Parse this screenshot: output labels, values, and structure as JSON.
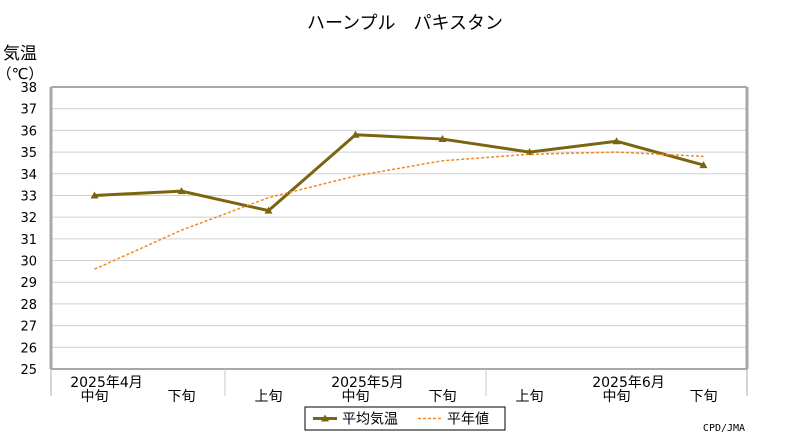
{
  "chart_data": {
    "type": "line",
    "title": "ハーンプル　パキスタン",
    "ylabel_line1": "気温",
    "ylabel_line2": "（℃）",
    "ylim": [
      25,
      38
    ],
    "yticks": [
      25,
      26,
      27,
      28,
      29,
      30,
      31,
      32,
      33,
      34,
      35,
      36,
      37,
      38
    ],
    "categories": [
      "中旬",
      "下旬",
      "上旬",
      "中旬",
      "下旬",
      "上旬",
      "中旬",
      "下旬"
    ],
    "month_labels": [
      {
        "label": "2025年4月",
        "category_index": 0
      },
      {
        "label": "2025年5月",
        "category_index": 3
      },
      {
        "label": "2025年6月",
        "category_index": 6
      }
    ],
    "series": [
      {
        "name": "平均気温",
        "style": "solid-triangle",
        "color": "#7a6410",
        "values": [
          33.0,
          33.2,
          32.3,
          35.8,
          35.6,
          35.0,
          35.5,
          34.4
        ]
      },
      {
        "name": "平年値",
        "style": "dashed",
        "color": "#f08a24",
        "values": [
          29.6,
          31.4,
          32.9,
          33.9,
          34.6,
          34.9,
          35.0,
          34.8
        ]
      }
    ],
    "grid": true,
    "legend_position": "bottom-center",
    "credit": "CPD/JMA"
  }
}
